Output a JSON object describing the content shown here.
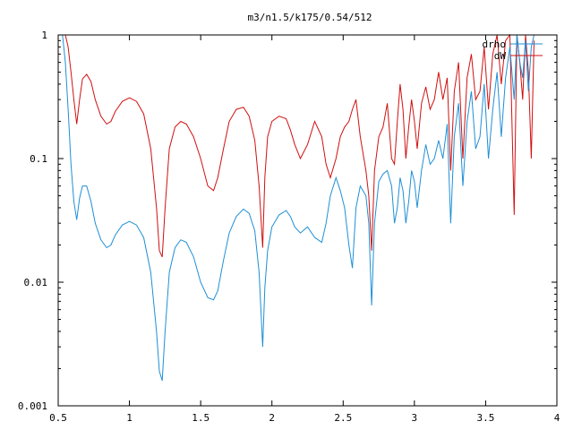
{
  "chart_data": {
    "type": "line",
    "title": "m3/n1.5/k175/0.54/512",
    "xlabel": "",
    "ylabel": "",
    "xlim": [
      0.5,
      4
    ],
    "ylim": [
      0.001,
      1
    ],
    "yscale": "log",
    "grid": false,
    "legend": "top-right",
    "x_ticks": [
      {
        "value": 0.5,
        "label": "0.5"
      },
      {
        "value": 1,
        "label": "1"
      },
      {
        "value": 1.5,
        "label": "1.5"
      },
      {
        "value": 2,
        "label": "2"
      },
      {
        "value": 2.5,
        "label": "2.5"
      },
      {
        "value": 3,
        "label": "3"
      },
      {
        "value": 3.5,
        "label": "3.5"
      },
      {
        "value": 4,
        "label": "4"
      }
    ],
    "y_ticks": [
      {
        "value": 0.001,
        "label": "0.001"
      },
      {
        "value": 0.01,
        "label": "0.01"
      },
      {
        "value": 0.1,
        "label": "0.1"
      },
      {
        "value": 1,
        "label": "1"
      }
    ],
    "series": [
      {
        "name": "drho",
        "color": "#1f8fd6",
        "x": [
          0.53,
          0.55,
          0.57,
          0.59,
          0.61,
          0.63,
          0.65,
          0.67,
          0.7,
          0.73,
          0.76,
          0.8,
          0.84,
          0.87,
          0.9,
          0.95,
          1.0,
          1.05,
          1.1,
          1.15,
          1.19,
          1.21,
          1.23,
          1.25,
          1.28,
          1.32,
          1.36,
          1.4,
          1.45,
          1.5,
          1.55,
          1.59,
          1.62,
          1.66,
          1.7,
          1.75,
          1.8,
          1.84,
          1.88,
          1.91,
          1.935,
          1.95,
          1.97,
          2.0,
          2.05,
          2.1,
          2.13,
          2.16,
          2.2,
          2.25,
          2.3,
          2.35,
          2.38,
          2.41,
          2.45,
          2.48,
          2.51,
          2.54,
          2.565,
          2.59,
          2.62,
          2.66,
          2.68,
          2.7,
          2.72,
          2.75,
          2.78,
          2.81,
          2.84,
          2.86,
          2.88,
          2.9,
          2.92,
          2.94,
          2.96,
          2.98,
          3.0,
          3.02,
          3.05,
          3.08,
          3.11,
          3.14,
          3.17,
          3.2,
          3.23,
          3.255,
          3.28,
          3.31,
          3.34,
          3.37,
          3.4,
          3.43,
          3.46,
          3.49,
          3.52,
          3.55,
          3.58,
          3.61,
          3.64,
          3.67,
          3.7,
          3.72,
          3.74,
          3.76,
          3.78,
          3.8,
          3.82,
          3.84
        ],
        "values": [
          1.0,
          0.6,
          0.25,
          0.09,
          0.045,
          0.032,
          0.048,
          0.06,
          0.06,
          0.045,
          0.03,
          0.022,
          0.019,
          0.02,
          0.024,
          0.029,
          0.031,
          0.029,
          0.023,
          0.012,
          0.004,
          0.0019,
          0.0016,
          0.004,
          0.012,
          0.019,
          0.022,
          0.021,
          0.016,
          0.01,
          0.0075,
          0.0072,
          0.0085,
          0.015,
          0.025,
          0.034,
          0.039,
          0.036,
          0.026,
          0.012,
          0.003,
          0.009,
          0.018,
          0.028,
          0.035,
          0.038,
          0.034,
          0.028,
          0.025,
          0.028,
          0.023,
          0.021,
          0.03,
          0.05,
          0.07,
          0.055,
          0.04,
          0.02,
          0.013,
          0.04,
          0.06,
          0.05,
          0.03,
          0.0065,
          0.03,
          0.065,
          0.075,
          0.08,
          0.06,
          0.03,
          0.04,
          0.07,
          0.055,
          0.03,
          0.045,
          0.08,
          0.065,
          0.04,
          0.08,
          0.13,
          0.09,
          0.1,
          0.14,
          0.1,
          0.19,
          0.03,
          0.15,
          0.28,
          0.06,
          0.2,
          0.35,
          0.12,
          0.15,
          0.4,
          0.1,
          0.25,
          0.5,
          0.15,
          0.45,
          0.8,
          0.3,
          1.0,
          0.6,
          0.45,
          0.9,
          0.35,
          0.8,
          1.0
        ]
      },
      {
        "name": "dW",
        "color": "#d01010",
        "x": [
          0.53,
          0.55,
          0.57,
          0.59,
          0.61,
          0.63,
          0.65,
          0.67,
          0.7,
          0.73,
          0.76,
          0.8,
          0.84,
          0.87,
          0.9,
          0.95,
          1.0,
          1.05,
          1.1,
          1.15,
          1.19,
          1.21,
          1.23,
          1.25,
          1.28,
          1.32,
          1.36,
          1.4,
          1.45,
          1.5,
          1.55,
          1.59,
          1.62,
          1.66,
          1.7,
          1.75,
          1.8,
          1.84,
          1.88,
          1.91,
          1.935,
          1.95,
          1.97,
          2.0,
          2.05,
          2.1,
          2.13,
          2.16,
          2.2,
          2.25,
          2.3,
          2.35,
          2.38,
          2.41,
          2.45,
          2.48,
          2.51,
          2.54,
          2.565,
          2.59,
          2.62,
          2.66,
          2.68,
          2.7,
          2.72,
          2.75,
          2.78,
          2.81,
          2.84,
          2.86,
          2.88,
          2.9,
          2.92,
          2.94,
          2.96,
          2.98,
          3.0,
          3.02,
          3.05,
          3.08,
          3.11,
          3.14,
          3.17,
          3.2,
          3.23,
          3.255,
          3.28,
          3.31,
          3.34,
          3.37,
          3.4,
          3.43,
          3.46,
          3.49,
          3.52,
          3.55,
          3.58,
          3.61,
          3.64,
          3.67,
          3.7,
          3.72,
          3.74,
          3.76,
          3.78,
          3.8,
          3.82,
          3.84
        ],
        "values": [
          1.0,
          1.0,
          0.8,
          0.5,
          0.3,
          0.19,
          0.3,
          0.44,
          0.48,
          0.42,
          0.3,
          0.22,
          0.19,
          0.2,
          0.24,
          0.29,
          0.31,
          0.29,
          0.23,
          0.12,
          0.04,
          0.018,
          0.016,
          0.04,
          0.12,
          0.18,
          0.2,
          0.19,
          0.15,
          0.1,
          0.06,
          0.055,
          0.07,
          0.12,
          0.2,
          0.25,
          0.26,
          0.22,
          0.14,
          0.06,
          0.019,
          0.07,
          0.15,
          0.2,
          0.22,
          0.21,
          0.17,
          0.13,
          0.1,
          0.13,
          0.2,
          0.15,
          0.09,
          0.07,
          0.1,
          0.15,
          0.18,
          0.2,
          0.25,
          0.3,
          0.15,
          0.08,
          0.05,
          0.018,
          0.08,
          0.15,
          0.18,
          0.28,
          0.1,
          0.09,
          0.2,
          0.4,
          0.25,
          0.1,
          0.18,
          0.3,
          0.2,
          0.12,
          0.28,
          0.38,
          0.25,
          0.3,
          0.5,
          0.3,
          0.45,
          0.08,
          0.35,
          0.6,
          0.1,
          0.45,
          0.7,
          0.3,
          0.35,
          0.8,
          0.25,
          0.7,
          1.0,
          0.4,
          0.9,
          1.0,
          0.035,
          1.0,
          0.6,
          0.3,
          1.0,
          0.5,
          0.1,
          0.9
        ]
      }
    ]
  }
}
